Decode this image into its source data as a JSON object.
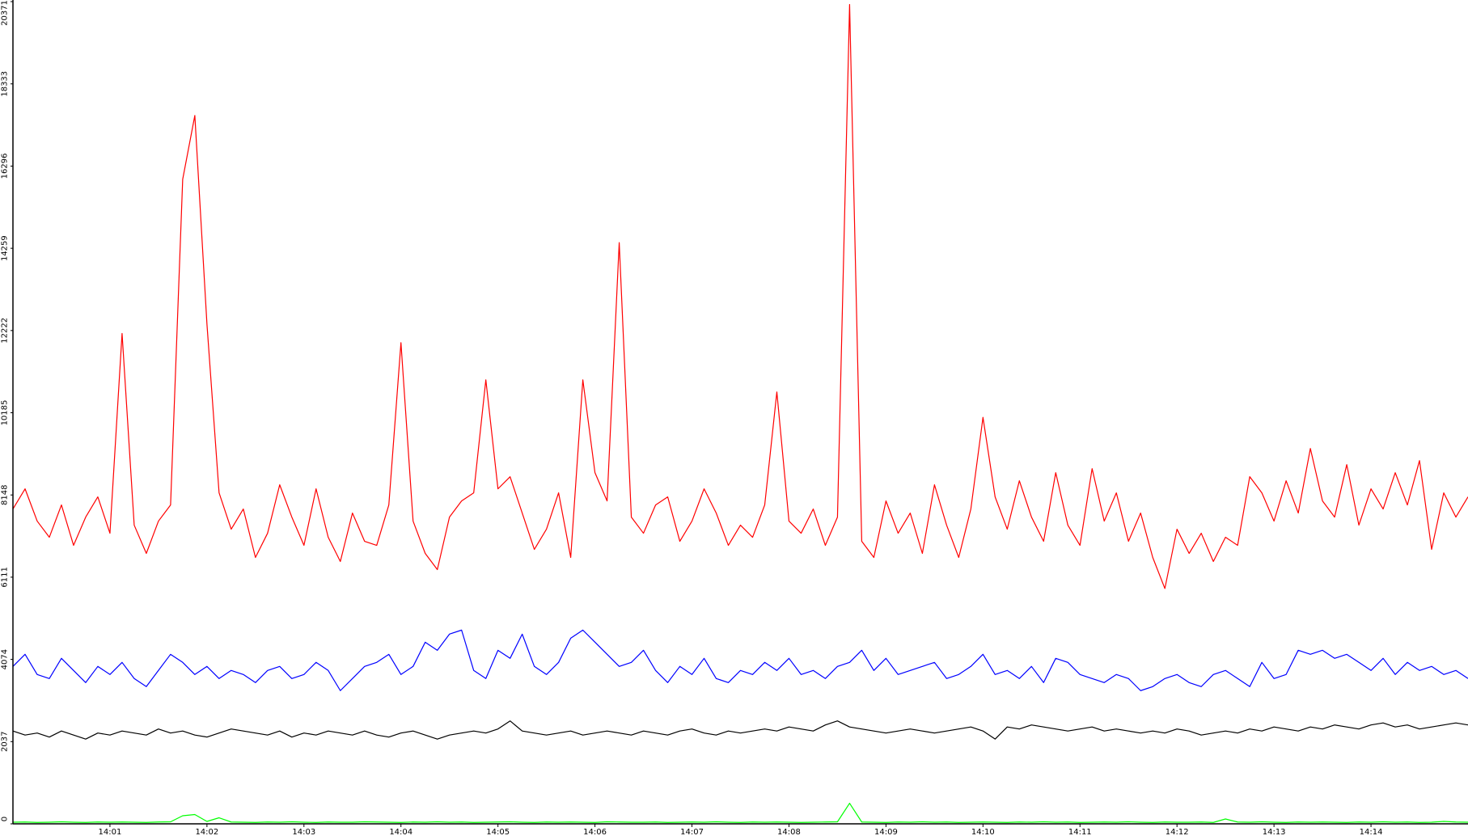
{
  "chart_data": {
    "type": "line",
    "grid": false,
    "xlim": [
      0,
      15
    ],
    "ylim": [
      0,
      20371
    ],
    "xticks": [
      {
        "value": 1,
        "label": "14:01"
      },
      {
        "value": 2,
        "label": "14:02"
      },
      {
        "value": 3,
        "label": "14:03"
      },
      {
        "value": 4,
        "label": "14:04"
      },
      {
        "value": 5,
        "label": "14:05"
      },
      {
        "value": 6,
        "label": "14:06"
      },
      {
        "value": 7,
        "label": "14:07"
      },
      {
        "value": 8,
        "label": "14:08"
      },
      {
        "value": 9,
        "label": "14:09"
      },
      {
        "value": 10,
        "label": "14:10"
      },
      {
        "value": 11,
        "label": "14:11"
      },
      {
        "value": 12,
        "label": "14:12"
      },
      {
        "value": 13,
        "label": "14:13"
      },
      {
        "value": 14,
        "label": "14:14"
      }
    ],
    "yticks": [
      0,
      2037,
      4074,
      6111,
      8148,
      10185,
      12222,
      14259,
      16296,
      18333,
      20371
    ],
    "x": [
      0,
      0.125,
      0.25,
      0.375,
      0.5,
      0.625,
      0.75,
      0.875,
      1,
      1.125,
      1.25,
      1.375,
      1.5,
      1.625,
      1.75,
      1.875,
      2,
      2.125,
      2.25,
      2.375,
      2.5,
      2.625,
      2.75,
      2.875,
      3,
      3.125,
      3.25,
      3.375,
      3.5,
      3.625,
      3.75,
      3.875,
      4,
      4.125,
      4.25,
      4.375,
      4.5,
      4.625,
      4.75,
      4.875,
      5,
      5.125,
      5.25,
      5.375,
      5.5,
      5.625,
      5.75,
      5.875,
      6,
      6.125,
      6.25,
      6.375,
      6.5,
      6.625,
      6.75,
      6.875,
      7,
      7.125,
      7.25,
      7.375,
      7.5,
      7.625,
      7.75,
      7.875,
      8,
      8.125,
      8.25,
      8.375,
      8.5,
      8.625,
      8.75,
      8.875,
      9,
      9.125,
      9.25,
      9.375,
      9.5,
      9.625,
      9.75,
      9.875,
      10,
      10.125,
      10.25,
      10.375,
      10.5,
      10.625,
      10.75,
      10.875,
      11,
      11.125,
      11.25,
      11.375,
      11.5,
      11.625,
      11.75,
      11.875,
      12,
      12.125,
      12.25,
      12.375,
      12.5,
      12.625,
      12.75,
      12.875,
      13,
      13.125,
      13.25,
      13.375,
      13.5,
      13.625,
      13.75,
      13.875,
      14,
      14.125,
      14.25,
      14.375,
      14.5,
      14.625,
      14.75,
      14.875,
      15
    ],
    "series": [
      {
        "color": "#ff0000",
        "values": [
          7800,
          8300,
          7500,
          7100,
          7900,
          6900,
          7600,
          8100,
          7200,
          12150,
          7400,
          6700,
          7500,
          7900,
          15970,
          17550,
          12380,
          8200,
          7300,
          7800,
          6600,
          7200,
          8400,
          7600,
          6900,
          8300,
          7100,
          6500,
          7700,
          7000,
          6900,
          7900,
          11920,
          7500,
          6700,
          6300,
          7600,
          8000,
          8200,
          11000,
          8300,
          8600,
          7700,
          6800,
          7300,
          8200,
          6600,
          11000,
          8700,
          8000,
          14400,
          7600,
          7200,
          7900,
          8100,
          7000,
          7500,
          8300,
          7700,
          6900,
          7400,
          7100,
          7900,
          10700,
          7500,
          7200,
          7800,
          6900,
          7600,
          20300,
          7000,
          6600,
          8000,
          7200,
          7700,
          6700,
          8400,
          7400,
          6600,
          7800,
          10070,
          8100,
          7300,
          8500,
          7600,
          7000,
          8700,
          7400,
          6900,
          8800,
          7500,
          8200,
          7000,
          7700,
          6600,
          5830,
          7300,
          6700,
          7200,
          6500,
          7100,
          6900,
          8600,
          8200,
          7500,
          8500,
          7700,
          9300,
          8000,
          7600,
          8900,
          7400,
          8300,
          7800,
          8700,
          7900,
          9000,
          6800,
          8200,
          7600,
          8100
        ]
      },
      {
        "color": "#0000ff",
        "values": [
          3900,
          4200,
          3700,
          3600,
          4100,
          3800,
          3500,
          3900,
          3700,
          4000,
          3600,
          3400,
          3800,
          4200,
          4000,
          3700,
          3900,
          3600,
          3800,
          3700,
          3500,
          3800,
          3900,
          3600,
          3700,
          4000,
          3800,
          3300,
          3600,
          3900,
          4000,
          4200,
          3700,
          3900,
          4500,
          4300,
          4700,
          4800,
          3800,
          3600,
          4300,
          4100,
          4700,
          3900,
          3700,
          4000,
          4600,
          4800,
          4500,
          4200,
          3900,
          4000,
          4300,
          3800,
          3500,
          3900,
          3700,
          4100,
          3600,
          3500,
          3800,
          3700,
          4000,
          3800,
          4100,
          3700,
          3800,
          3600,
          3900,
          4000,
          4300,
          3800,
          4100,
          3700,
          3800,
          3900,
          4000,
          3600,
          3700,
          3900,
          4200,
          3700,
          3800,
          3600,
          3900,
          3500,
          4100,
          4000,
          3700,
          3600,
          3500,
          3700,
          3600,
          3300,
          3400,
          3600,
          3700,
          3500,
          3400,
          3700,
          3800,
          3600,
          3400,
          4000,
          3600,
          3700,
          4300,
          4200,
          4300,
          4100,
          4200,
          4000,
          3800,
          4100,
          3700,
          4000,
          3800,
          3900,
          3700,
          3800,
          3600
        ]
      },
      {
        "color": "#000000",
        "values": [
          2300,
          2200,
          2250,
          2150,
          2300,
          2200,
          2100,
          2250,
          2200,
          2300,
          2250,
          2200,
          2350,
          2250,
          2300,
          2200,
          2150,
          2250,
          2350,
          2300,
          2250,
          2200,
          2300,
          2150,
          2250,
          2200,
          2300,
          2250,
          2200,
          2300,
          2200,
          2150,
          2250,
          2300,
          2200,
          2100,
          2200,
          2250,
          2300,
          2250,
          2350,
          2550,
          2300,
          2250,
          2200,
          2250,
          2300,
          2200,
          2250,
          2300,
          2250,
          2200,
          2300,
          2250,
          2200,
          2300,
          2350,
          2250,
          2200,
          2300,
          2250,
          2300,
          2350,
          2300,
          2400,
          2350,
          2300,
          2450,
          2550,
          2400,
          2350,
          2300,
          2250,
          2300,
          2350,
          2300,
          2250,
          2300,
          2350,
          2400,
          2300,
          2100,
          2400,
          2350,
          2450,
          2400,
          2350,
          2300,
          2350,
          2400,
          2300,
          2350,
          2300,
          2250,
          2300,
          2250,
          2350,
          2300,
          2200,
          2250,
          2300,
          2250,
          2350,
          2300,
          2400,
          2350,
          2300,
          2400,
          2350,
          2450,
          2400,
          2350,
          2450,
          2500,
          2400,
          2450,
          2350,
          2400,
          2450,
          2500,
          2450
        ]
      },
      {
        "color": "#00ff00",
        "values": [
          40,
          45,
          35,
          40,
          50,
          40,
          35,
          45,
          40,
          45,
          40,
          35,
          45,
          50,
          200,
          230,
          60,
          150,
          45,
          40,
          35,
          45,
          40,
          50,
          40,
          35,
          45,
          40,
          40,
          50,
          45,
          40,
          35,
          45,
          40,
          50,
          40,
          45,
          35,
          40,
          45,
          50,
          40,
          35,
          45,
          40,
          45,
          40,
          35,
          50,
          45,
          40,
          40,
          45,
          35,
          40,
          45,
          40,
          50,
          40,
          35,
          45,
          40,
          45,
          40,
          35,
          40,
          45,
          50,
          510,
          45,
          40,
          35,
          45,
          40,
          50,
          40,
          45,
          35,
          40,
          45,
          40,
          35,
          45,
          40,
          50,
          40,
          45,
          35,
          40,
          45,
          40,
          50,
          40,
          35,
          45,
          40,
          40,
          45,
          35,
          120,
          45,
          40,
          50,
          40,
          35,
          45,
          40,
          45,
          40,
          35,
          45,
          40,
          50,
          40,
          45,
          35,
          40,
          60,
          45,
          40
        ]
      }
    ]
  }
}
